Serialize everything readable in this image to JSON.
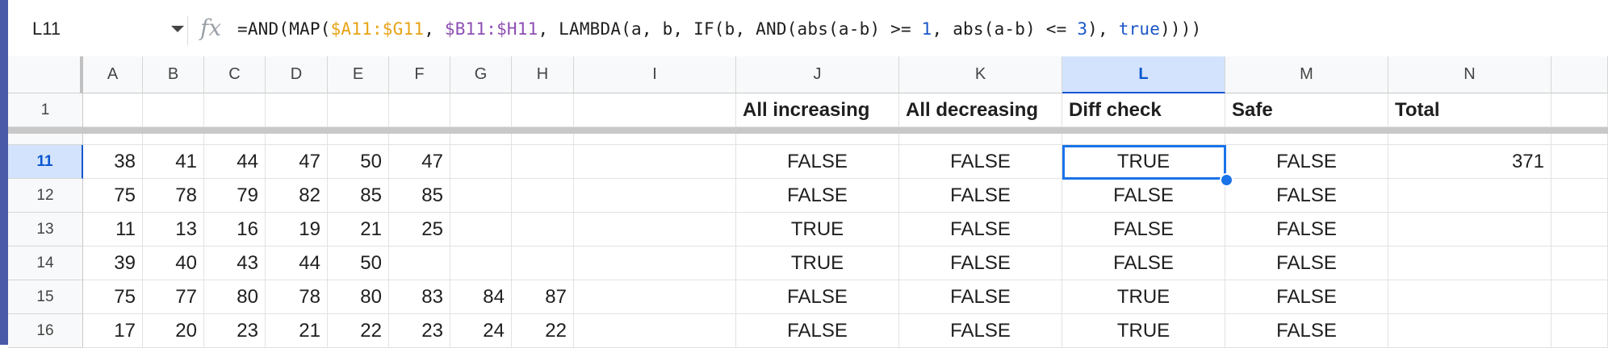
{
  "formula_bar": {
    "name_box": "L11",
    "fx_label": "fx",
    "formula_segments": [
      {
        "text": "=AND(MAP(",
        "style": "plain"
      },
      {
        "text": "$A11:$G11",
        "style": "orange"
      },
      {
        "text": ", ",
        "style": "plain"
      },
      {
        "text": "$B11:$H11",
        "style": "purple"
      },
      {
        "text": ", LAMBDA(a, b, IF(b, AND(abs(a-b) >= ",
        "style": "plain"
      },
      {
        "text": "1",
        "style": "blue"
      },
      {
        "text": ", abs(a-b) <= ",
        "style": "plain"
      },
      {
        "text": "3",
        "style": "blue"
      },
      {
        "text": "), ",
        "style": "plain"
      },
      {
        "text": "true",
        "style": "blue"
      },
      {
        "text": "))))",
        "style": "plain"
      }
    ]
  },
  "columns": [
    "A",
    "B",
    "C",
    "D",
    "E",
    "F",
    "G",
    "H",
    "I",
    "J",
    "K",
    "L",
    "M",
    "N"
  ],
  "selected_column": "L",
  "selected_row": "11",
  "header_row": {
    "row_number": "1",
    "J": "All increasing",
    "K": "All decreasing",
    "L": "Diff check",
    "M": "Safe",
    "N": "Total"
  },
  "rows": [
    {
      "row_number": "11",
      "values": [
        "38",
        "41",
        "44",
        "47",
        "50",
        "47",
        "",
        ""
      ],
      "J": "FALSE",
      "K": "FALSE",
      "L": "TRUE",
      "M": "FALSE",
      "N": "371"
    },
    {
      "row_number": "12",
      "values": [
        "75",
        "78",
        "79",
        "82",
        "85",
        "85",
        "",
        ""
      ],
      "J": "FALSE",
      "K": "FALSE",
      "L": "FALSE",
      "M": "FALSE",
      "N": ""
    },
    {
      "row_number": "13",
      "values": [
        "11",
        "13",
        "16",
        "19",
        "21",
        "25",
        "",
        ""
      ],
      "J": "TRUE",
      "K": "FALSE",
      "L": "FALSE",
      "M": "FALSE",
      "N": ""
    },
    {
      "row_number": "14",
      "values": [
        "39",
        "40",
        "43",
        "44",
        "50",
        "",
        "",
        ""
      ],
      "J": "TRUE",
      "K": "FALSE",
      "L": "FALSE",
      "M": "FALSE",
      "N": ""
    },
    {
      "row_number": "15",
      "values": [
        "75",
        "77",
        "80",
        "78",
        "80",
        "83",
        "84",
        "87"
      ],
      "J": "FALSE",
      "K": "FALSE",
      "L": "TRUE",
      "M": "FALSE",
      "N": ""
    },
    {
      "row_number": "16",
      "values": [
        "17",
        "20",
        "23",
        "21",
        "22",
        "23",
        "24",
        "22"
      ],
      "J": "FALSE",
      "K": "FALSE",
      "L": "TRUE",
      "M": "FALSE",
      "N": ""
    }
  ],
  "colors": {
    "selection": "#1a73e8",
    "selected_header_bg": "#d3e3fd",
    "range_orange": "#e8a316",
    "range_purple": "#8e4fb4",
    "literal_blue": "#1a55c8"
  }
}
